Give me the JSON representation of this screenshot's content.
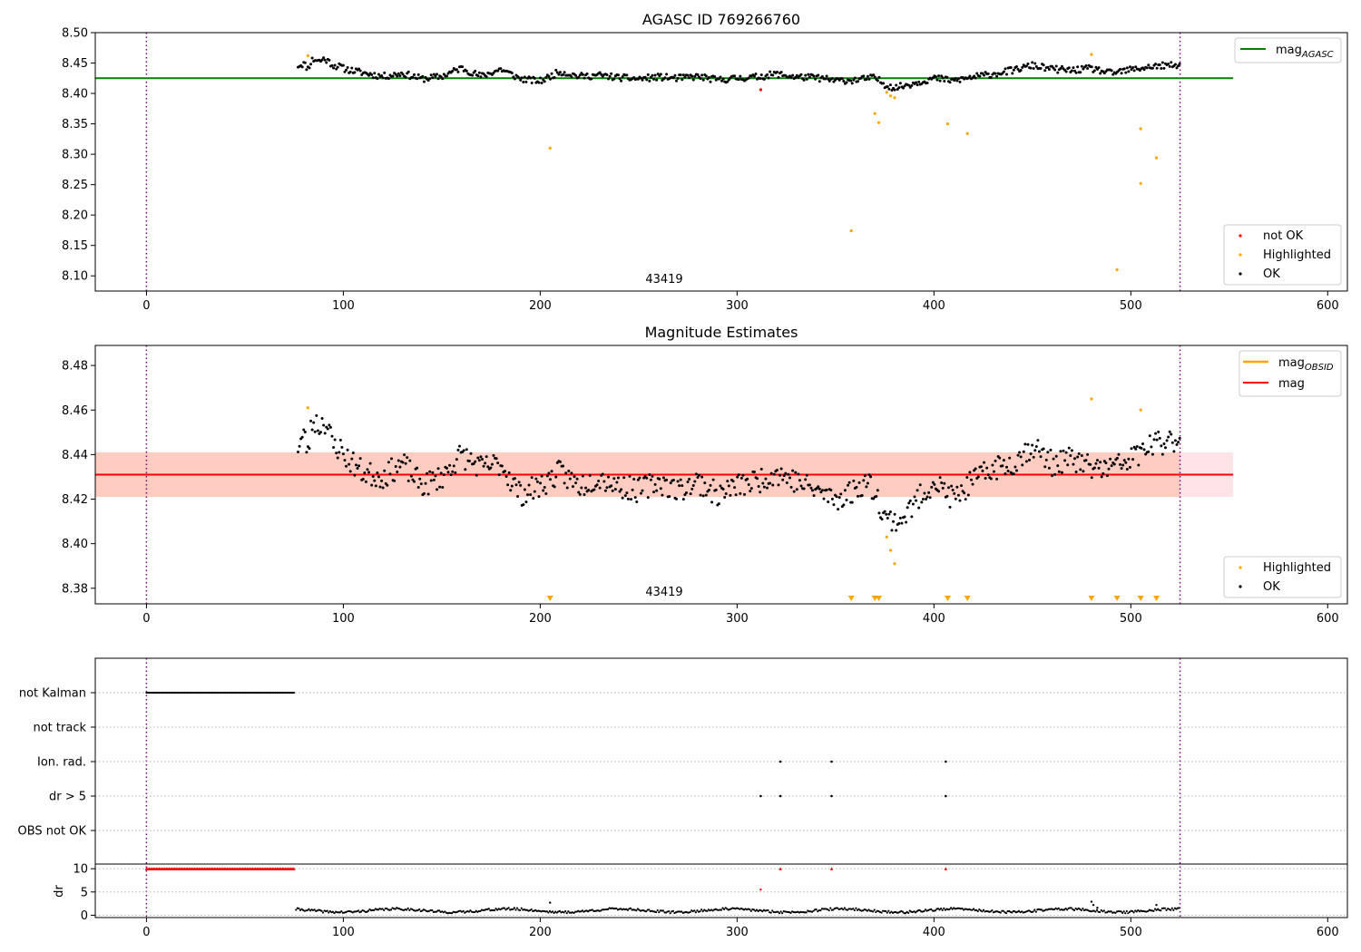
{
  "chart_data": [
    {
      "type": "scatter",
      "title": "AGASC ID 769266760",
      "annotation": "43419",
      "xlim": [
        -26,
        610
      ],
      "ylim": [
        8.075,
        8.5
      ],
      "xticks": [
        0,
        100,
        200,
        300,
        400,
        500,
        600
      ],
      "yticks": [
        8.1,
        8.15,
        8.2,
        8.25,
        8.3,
        8.35,
        8.4,
        8.45,
        8.5
      ],
      "ytick_labels": [
        "8.10",
        "8.15",
        "8.20",
        "8.25",
        "8.30",
        "8.35",
        "8.40",
        "8.45",
        "8.50"
      ],
      "vlines_dotted": [
        0,
        525
      ],
      "hline": {
        "y": 8.425,
        "xmax": 552,
        "color": "#008000"
      },
      "legend_top": {
        "position": "upper right",
        "entries": [
          {
            "label": "mag",
            "sub": "AGASC",
            "color": "#008000",
            "kind": "line"
          }
        ]
      },
      "legend_bottom": {
        "position": "lower right",
        "entries": [
          {
            "label": "not OK",
            "color": "#ff0000",
            "kind": "marker"
          },
          {
            "label": "Highlighted",
            "color": "#ffa500",
            "kind": "marker"
          },
          {
            "label": "OK",
            "color": "#000000",
            "kind": "marker"
          }
        ]
      },
      "ok_segments": [
        {
          "x": [
            77,
            80,
            82,
            84,
            86,
            88,
            90,
            92,
            95,
            100
          ],
          "y": [
            8.446,
            8.449,
            8.441,
            8.455,
            8.456,
            8.453,
            8.457,
            8.454,
            8.446,
            8.443
          ]
        },
        {
          "x": [
            100,
            110,
            120,
            130,
            140,
            150,
            160,
            170,
            180,
            190,
            200,
            210,
            220,
            230,
            240,
            250,
            260,
            270,
            280,
            290,
            300,
            310,
            320,
            330,
            340,
            350,
            360,
            370,
            375,
            380,
            390,
            400,
            410,
            420,
            430,
            440,
            450,
            460,
            470,
            480,
            490,
            500,
            510,
            520,
            525
          ],
          "y": [
            8.441,
            8.434,
            8.428,
            8.433,
            8.424,
            8.428,
            8.442,
            8.428,
            8.44,
            8.424,
            8.42,
            8.436,
            8.428,
            8.43,
            8.426,
            8.424,
            8.427,
            8.425,
            8.428,
            8.422,
            8.425,
            8.427,
            8.432,
            8.427,
            8.426,
            8.421,
            8.422,
            8.426,
            8.415,
            8.409,
            8.417,
            8.425,
            8.421,
            8.427,
            8.432,
            8.438,
            8.446,
            8.44,
            8.438,
            8.441,
            8.433,
            8.439,
            8.444,
            8.446,
            8.445
          ]
        }
      ],
      "not_ok": {
        "x": [
          312
        ],
        "y": [
          8.406
        ]
      },
      "highlighted": {
        "x": [
          82,
          205,
          358,
          370,
          372,
          376,
          378,
          380,
          407,
          417,
          480,
          493,
          505,
          505,
          513
        ],
        "y": [
          8.462,
          8.31,
          8.174,
          8.367,
          8.352,
          8.402,
          8.396,
          8.393,
          8.35,
          8.334,
          8.464,
          8.11,
          8.342,
          8.252,
          8.294
        ]
      },
      "jitter": 0.0055,
      "seed": 11
    },
    {
      "type": "scatter",
      "title": "Magnitude Estimates",
      "annotation": "43419",
      "xlim": [
        -26,
        610
      ],
      "ylim": [
        8.373,
        8.489
      ],
      "xticks": [
        0,
        100,
        200,
        300,
        400,
        500,
        600
      ],
      "yticks": [
        8.38,
        8.4,
        8.42,
        8.44,
        8.46,
        8.48
      ],
      "ytick_labels": [
        "8.38",
        "8.40",
        "8.42",
        "8.44",
        "8.46",
        "8.48"
      ],
      "vlines_dotted": [
        0,
        525
      ],
      "band_outer": {
        "y0": 8.421,
        "y1": 8.441,
        "xmin": -26,
        "xmax": 552,
        "color": "#ffc0cb"
      },
      "band_inner": {
        "y0": 8.421,
        "y1": 8.441,
        "xmin": -26,
        "xmax": 525,
        "color": "#ffa07a"
      },
      "hline": {
        "y": 8.431,
        "xmax": 552,
        "color": "#ff0000"
      },
      "legend_top": {
        "position": "upper right",
        "entries": [
          {
            "label": "mag",
            "sub": "OBSID",
            "color": "#ffa500",
            "kind": "line"
          },
          {
            "label": "mag",
            "sub": "",
            "color": "#ff0000",
            "kind": "line"
          }
        ]
      },
      "legend_bottom": {
        "position": "lower right",
        "entries": [
          {
            "label": "Highlighted",
            "color": "#ffa500",
            "kind": "marker"
          },
          {
            "label": "OK",
            "color": "#000000",
            "kind": "marker"
          }
        ]
      },
      "ok_segments": [
        {
          "x": [
            77,
            80,
            82,
            84,
            86,
            88,
            90,
            92,
            95,
            100
          ],
          "y": [
            8.444,
            8.449,
            8.441,
            8.454,
            8.455,
            8.452,
            8.456,
            8.452,
            8.444,
            8.442
          ]
        },
        {
          "x": [
            100,
            110,
            120,
            130,
            140,
            150,
            160,
            170,
            180,
            190,
            200,
            210,
            220,
            230,
            240,
            250,
            260,
            270,
            280,
            290,
            300,
            310,
            320,
            330,
            340,
            350,
            360,
            365,
            370,
            375,
            380,
            385,
            390,
            400,
            410,
            420,
            430,
            440,
            450,
            460,
            470,
            480,
            490,
            500,
            510,
            520,
            525
          ],
          "y": [
            8.44,
            8.432,
            8.43,
            8.436,
            8.426,
            8.43,
            8.44,
            8.434,
            8.436,
            8.422,
            8.426,
            8.432,
            8.426,
            8.43,
            8.426,
            8.424,
            8.428,
            8.424,
            8.428,
            8.422,
            8.426,
            8.428,
            8.432,
            8.428,
            8.424,
            8.42,
            8.424,
            8.428,
            8.424,
            8.412,
            8.41,
            8.412,
            8.418,
            8.428,
            8.42,
            8.428,
            8.434,
            8.436,
            8.444,
            8.436,
            8.438,
            8.434,
            8.434,
            8.438,
            8.444,
            8.446,
            8.448
          ]
        }
      ],
      "highlighted": {
        "x": [
          82,
          376,
          378,
          380,
          480,
          505
        ],
        "y": [
          8.461,
          8.403,
          8.397,
          8.391,
          8.465,
          8.46
        ]
      },
      "offscale_markers": [
        205,
        358,
        370,
        372,
        407,
        417,
        480,
        493,
        505,
        513
      ],
      "jitter": 0.0055,
      "seed": 23
    },
    {
      "type": "scatter",
      "title": "",
      "xlim": [
        -26,
        610
      ],
      "xticks": [
        0,
        100,
        200,
        300,
        400,
        500,
        600
      ],
      "vlines_dotted": [
        0,
        525
      ],
      "flag_rows": [
        "not Kalman",
        "not track",
        "Ion. rad.",
        "dr > 5",
        "OBS not OK"
      ],
      "flags": {
        "not Kalman": {
          "range": [
            0,
            75
          ]
        },
        "not track": {
          "x": []
        },
        "Ion. rad.": {
          "x": [
            322,
            348,
            406
          ]
        },
        "dr > 5": {
          "x": [
            312,
            322,
            348,
            406
          ]
        },
        "OBS not OK": {
          "x": []
        }
      },
      "dr": {
        "ylabel": "dr",
        "ylim": [
          -0.5,
          11
        ],
        "yticks": [
          0,
          5,
          10
        ],
        "ytick_labels": [
          "0",
          "5",
          "10"
        ],
        "clip_value": 10,
        "clipped_range": [
          0,
          75
        ],
        "clipped_x": [
          322,
          348,
          406
        ],
        "outliers": {
          "x": [
            205,
            312,
            480,
            481,
            483,
            513
          ],
          "y": [
            2.7,
            5.5,
            2.9,
            2.2,
            1.6,
            2.2
          ]
        },
        "baseline": 1.0,
        "x_range": [
          76,
          525
        ]
      }
    }
  ]
}
